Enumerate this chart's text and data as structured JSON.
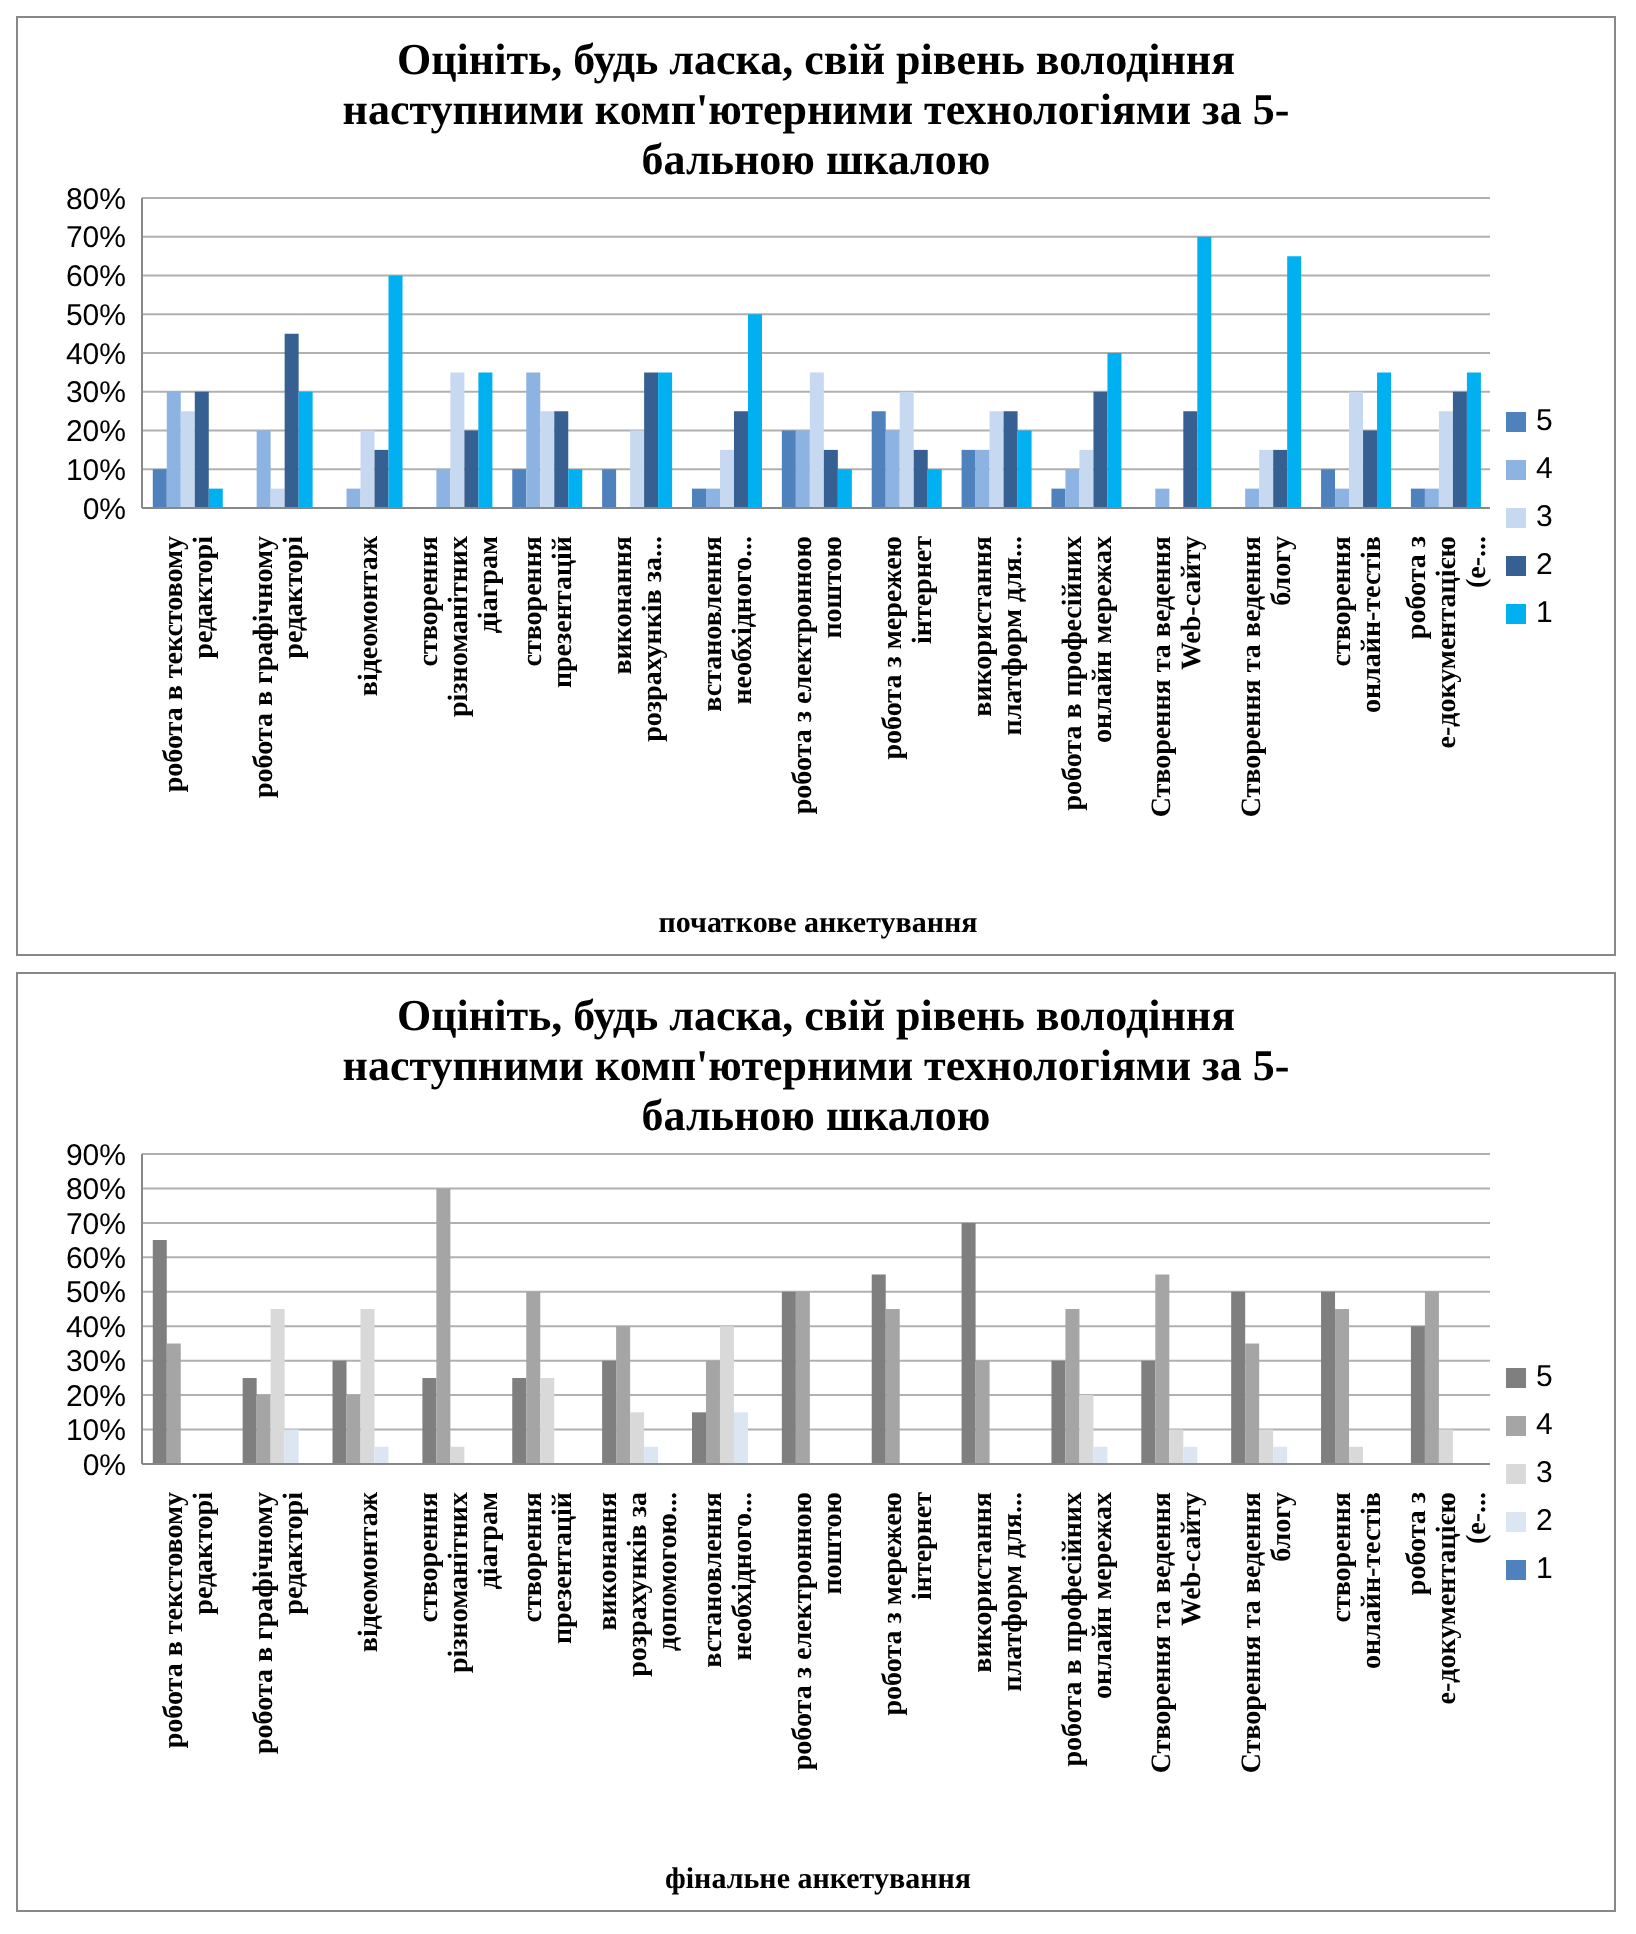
{
  "chart_data": [
    {
      "type": "bar",
      "title": "Оцініть, будь ласка, свій рівень володіння наступними комп'ютерними технологіями за 5-бальною шкалою",
      "xlabel": "початкове анкетування",
      "categories": [
        "робота в текстовому редакторі",
        "робота в графічному редакторі",
        "відеомонтаж",
        "створення різноманітних діаграм",
        "створення презентацій",
        "виконання розрахунків за...",
        "встановлення необхідного...",
        "робота з електронною поштою",
        "робота з мережею інтернет",
        "використання платформ для...",
        "робота в професійних онлайн мережах",
        "Створення та ведення Web-сайту",
        "Створення та ведення блогу",
        "створення онлайн-тестів",
        "робота з е-документацією (е-..."
      ],
      "series": [
        {
          "name": "5",
          "color": "#4f81bd",
          "values": [
            10,
            0,
            0,
            0,
            10,
            10,
            5,
            20,
            25,
            15,
            5,
            0,
            0,
            10,
            5
          ]
        },
        {
          "name": "4",
          "color": "#8db3e2",
          "values": [
            30,
            20,
            5,
            10,
            35,
            0,
            5,
            20,
            20,
            15,
            10,
            5,
            5,
            5,
            5
          ]
        },
        {
          "name": "3",
          "color": "#c6d9f1",
          "values": [
            25,
            5,
            20,
            35,
            25,
            20,
            15,
            35,
            30,
            25,
            15,
            0,
            15,
            30,
            25
          ]
        },
        {
          "name": "2",
          "color": "#366092",
          "values": [
            30,
            45,
            15,
            20,
            25,
            35,
            25,
            15,
            15,
            25,
            30,
            25,
            15,
            20,
            30
          ]
        },
        {
          "name": "1",
          "color": "#00b0f0",
          "values": [
            5,
            30,
            60,
            35,
            10,
            35,
            50,
            10,
            10,
            20,
            40,
            70,
            65,
            35,
            35
          ]
        }
      ],
      "ylim": [
        0,
        80
      ],
      "yticks": [
        {
          "value": 0,
          "label": "0%"
        },
        {
          "value": 10,
          "label": "10%"
        },
        {
          "value": 20,
          "label": "20%"
        },
        {
          "value": 30,
          "label": "30%"
        },
        {
          "value": 40,
          "label": "40%"
        },
        {
          "value": 50,
          "label": "50%"
        },
        {
          "value": 60,
          "label": "60%"
        },
        {
          "value": 70,
          "label": "70%"
        },
        {
          "value": 80,
          "label": "80%"
        }
      ],
      "grid": "y",
      "legend": "right"
    },
    {
      "type": "bar",
      "title": "Оцініть, будь ласка, свій рівень володіння наступними комп'ютерними технологіями за 5-бальною шкалою",
      "xlabel": "фінальне анкетування",
      "categories": [
        "робота в текстовому редакторі",
        "робота в графічному редакторі",
        "відеомонтаж",
        "створення різноманітних діаграм",
        "створення презентацій",
        "виконання розрахунків за допомогою...",
        "встановлення необхідного...",
        "робота з електронною поштою",
        "робота з мережею інтернет",
        "використання платформ для...",
        "робота в професійних онлайн мережах",
        "Створення та ведення Web-сайту",
        "Створення та ведення блогу",
        "створення онлайн-тестів",
        "робота з е-документацією (е-..."
      ],
      "series": [
        {
          "name": "5",
          "color": "#7f7f7f",
          "values": [
            65,
            25,
            30,
            25,
            25,
            30,
            15,
            50,
            55,
            70,
            30,
            30,
            50,
            50,
            40
          ]
        },
        {
          "name": "4",
          "color": "#a5a5a5",
          "values": [
            35,
            20,
            20,
            80,
            50,
            40,
            30,
            50,
            45,
            30,
            45,
            55,
            35,
            45,
            50
          ]
        },
        {
          "name": "3",
          "color": "#d9d9d9",
          "values": [
            0,
            45,
            45,
            5,
            25,
            15,
            40,
            0,
            0,
            0,
            20,
            10,
            10,
            5,
            10
          ]
        },
        {
          "name": "2",
          "color": "#dce6f2",
          "values": [
            0,
            10,
            5,
            0,
            0,
            5,
            15,
            0,
            0,
            0,
            5,
            5,
            5,
            0,
            0
          ]
        },
        {
          "name": "1",
          "color": "#4f81bd",
          "values": [
            0,
            0,
            0,
            0,
            0,
            0,
            0,
            0,
            0,
            0,
            0,
            0,
            0,
            0,
            0
          ]
        }
      ],
      "ylim": [
        0,
        90
      ],
      "yticks": [
        {
          "value": 0,
          "label": "0%"
        },
        {
          "value": 10,
          "label": "10%"
        },
        {
          "value": 20,
          "label": "20%"
        },
        {
          "value": 30,
          "label": "30%"
        },
        {
          "value": 40,
          "label": "40%"
        },
        {
          "value": 50,
          "label": "50%"
        },
        {
          "value": 60,
          "label": "60%"
        },
        {
          "value": 70,
          "label": "70%"
        },
        {
          "value": 80,
          "label": "80%"
        },
        {
          "value": 90,
          "label": "90%"
        }
      ],
      "grid": "y",
      "legend": "right"
    }
  ]
}
